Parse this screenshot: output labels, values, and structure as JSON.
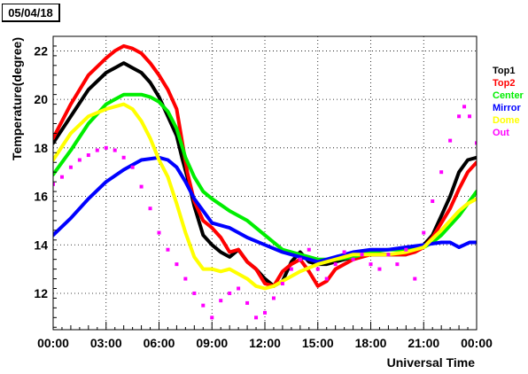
{
  "chart_data": {
    "type": "line",
    "title": "05/04/18",
    "xlabel": "Universal Time",
    "ylabel": "Temperature(degree)",
    "xlim": [
      0,
      24
    ],
    "ylim": [
      10.5,
      22.6
    ],
    "grid": true,
    "legend_position": "right",
    "x_ticks": [
      0,
      3,
      6,
      9,
      12,
      15,
      18,
      21,
      24
    ],
    "x_tick_labels": [
      "00:00",
      "03:00",
      "06:00",
      "09:00",
      "12:00",
      "15:00",
      "18:00",
      "21:00",
      "00:00"
    ],
    "y_ticks": [
      12,
      14,
      16,
      18,
      20,
      22
    ],
    "y_tick_labels": [
      "12",
      "14",
      "16",
      "18",
      "20",
      "22"
    ],
    "series": [
      {
        "name": "Top1",
        "color": "#000000",
        "style": "line",
        "x": [
          0,
          1,
          2,
          3,
          3.5,
          4,
          4.5,
          5,
          5.5,
          6,
          6.5,
          7,
          7.3,
          7.6,
          8,
          8.5,
          9,
          9.5,
          10,
          10.5,
          11,
          11.5,
          12,
          12.5,
          13,
          13.5,
          14,
          14.5,
          15,
          15.5,
          16,
          17,
          18,
          19,
          20,
          20.5,
          21,
          21.5,
          22,
          22.5,
          23,
          23.5,
          24
        ],
        "y": [
          18.2,
          19.3,
          20.4,
          21.1,
          21.3,
          21.5,
          21.3,
          21.1,
          20.7,
          20.1,
          19.3,
          18.5,
          17.6,
          16.8,
          15.6,
          14.4,
          14.0,
          13.7,
          13.5,
          13.8,
          13.3,
          13.0,
          12.6,
          12.3,
          12.5,
          13.3,
          13.7,
          13.3,
          13.2,
          13.2,
          13.3,
          13.5,
          13.6,
          13.6,
          13.6,
          13.8,
          14.0,
          14.4,
          15.2,
          16.0,
          17.0,
          17.5,
          17.6
        ]
      },
      {
        "name": "Top2",
        "color": "#ff0000",
        "style": "line",
        "x": [
          0,
          1,
          2,
          3,
          3.5,
          4,
          4.5,
          5,
          5.5,
          6,
          6.5,
          7,
          7.3,
          7.6,
          8,
          8.5,
          9,
          9.5,
          10,
          10.5,
          11,
          11.5,
          12,
          12.5,
          13,
          13.5,
          14,
          14.5,
          15,
          15.5,
          16,
          17,
          18,
          19,
          20,
          20.5,
          21,
          21.5,
          22,
          22.5,
          23,
          23.5,
          24
        ],
        "y": [
          18.4,
          19.8,
          21.0,
          21.7,
          22.0,
          22.2,
          22.1,
          21.9,
          21.5,
          21.0,
          20.4,
          19.6,
          18.3,
          17.0,
          15.8,
          15.0,
          14.7,
          14.3,
          13.7,
          13.8,
          13.3,
          13.0,
          12.4,
          12.3,
          12.9,
          13.2,
          13.4,
          12.9,
          12.3,
          12.5,
          13.0,
          13.4,
          13.6,
          13.6,
          13.6,
          13.7,
          13.9,
          14.3,
          14.9,
          15.5,
          16.3,
          17.0,
          17.4
        ]
      },
      {
        "name": "Center",
        "color": "#00ee00",
        "style": "line",
        "x": [
          0,
          1,
          2,
          3,
          3.5,
          4,
          4.5,
          5,
          5.5,
          6,
          6.5,
          7,
          7.5,
          8,
          8.5,
          9,
          10,
          11,
          12,
          13,
          14,
          15,
          16,
          17,
          18,
          19,
          20,
          21,
          21.5,
          22,
          22.5,
          23,
          23.5,
          24
        ],
        "y": [
          16.9,
          17.9,
          19.0,
          19.8,
          20.0,
          20.2,
          20.2,
          20.2,
          20.1,
          19.9,
          19.5,
          18.8,
          17.6,
          16.8,
          16.2,
          15.9,
          15.4,
          15.0,
          14.4,
          13.8,
          13.6,
          13.4,
          13.4,
          13.5,
          13.7,
          13.8,
          13.8,
          13.9,
          14.1,
          14.4,
          14.8,
          15.2,
          15.7,
          16.2
        ]
      },
      {
        "name": "Mirror",
        "color": "#0000ff",
        "style": "line",
        "x": [
          0,
          1,
          2,
          3,
          4,
          5,
          6,
          6.5,
          7,
          7.5,
          8,
          9,
          10,
          11,
          12,
          13,
          14,
          15,
          16,
          17,
          18,
          19,
          20,
          21,
          22,
          22.5,
          23,
          23.3,
          23.6,
          24
        ],
        "y": [
          14.4,
          15.1,
          15.9,
          16.6,
          17.1,
          17.5,
          17.6,
          17.5,
          17.2,
          16.6,
          15.9,
          14.9,
          14.7,
          14.3,
          14.0,
          13.7,
          13.5,
          13.3,
          13.5,
          13.7,
          13.8,
          13.8,
          13.9,
          14.0,
          14.1,
          14.1,
          13.9,
          14.0,
          14.1,
          14.1
        ]
      },
      {
        "name": "Dome",
        "color": "#ffff00",
        "style": "line",
        "x": [
          0,
          1,
          2,
          3,
          3.5,
          4,
          4.5,
          5,
          5.5,
          6,
          6.5,
          7,
          7.5,
          8,
          8.5,
          9,
          9.5,
          10,
          11,
          11.5,
          12,
          12.5,
          13,
          14,
          15,
          16,
          17,
          18,
          19,
          20,
          21,
          22,
          23,
          23.5,
          24
        ],
        "y": [
          17.5,
          18.6,
          19.3,
          19.6,
          19.7,
          19.8,
          19.6,
          19.1,
          18.4,
          17.5,
          16.8,
          15.7,
          14.5,
          13.5,
          13.0,
          13.0,
          12.9,
          13.0,
          12.6,
          12.3,
          12.2,
          12.3,
          12.5,
          12.9,
          13.2,
          13.4,
          13.6,
          13.6,
          13.6,
          13.7,
          13.9,
          14.6,
          15.4,
          15.7,
          15.9
        ]
      },
      {
        "name": "Out",
        "color": "#ff00ff",
        "style": "markers",
        "x": [
          0,
          0.5,
          1,
          1.5,
          2,
          2.5,
          3,
          3.5,
          4,
          4.5,
          5,
          5.5,
          6,
          6.5,
          7,
          7.5,
          8,
          8.5,
          9,
          9.5,
          10,
          10.5,
          11,
          11.5,
          12,
          12.5,
          13,
          13.5,
          14,
          14.5,
          15,
          15.5,
          16,
          16.5,
          17,
          17.5,
          18,
          18.5,
          19,
          19.5,
          20,
          20.5,
          21,
          21.5,
          22,
          22.5,
          23,
          23.3,
          23.6,
          24
        ],
        "y": [
          16.5,
          16.8,
          17.2,
          17.5,
          17.7,
          17.9,
          18.0,
          17.9,
          17.6,
          17.2,
          16.4,
          15.5,
          14.5,
          13.8,
          13.2,
          12.6,
          12.0,
          11.5,
          11.0,
          11.7,
          12.0,
          12.2,
          11.6,
          11.0,
          11.2,
          11.8,
          12.4,
          13.0,
          13.4,
          13.8,
          13.0,
          12.6,
          13.2,
          13.7,
          13.4,
          13.6,
          13.2,
          13.0,
          13.6,
          13.2,
          13.8,
          12.6,
          14.5,
          15.8,
          17.0,
          18.3,
          19.3,
          19.7,
          19.3,
          18.2
        ]
      }
    ]
  }
}
